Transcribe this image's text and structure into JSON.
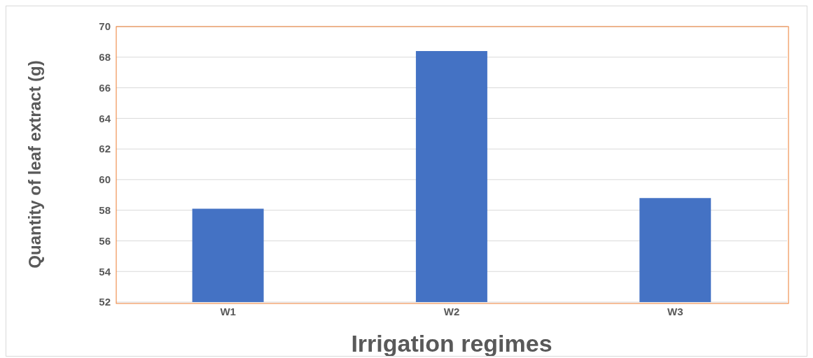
{
  "chart_data": {
    "type": "bar",
    "xlabel": "Irrigation regimes",
    "ylabel": "Quantity of leaf extract (g)",
    "categories": [
      "W1",
      "W2",
      "W3"
    ],
    "values": [
      58.1,
      68.4,
      58.8
    ],
    "color": "#4472c4",
    "ylim": [
      52,
      70
    ],
    "yticks": [
      52,
      54,
      56,
      58,
      60,
      62,
      64,
      66,
      68,
      70
    ],
    "grid": "y"
  }
}
